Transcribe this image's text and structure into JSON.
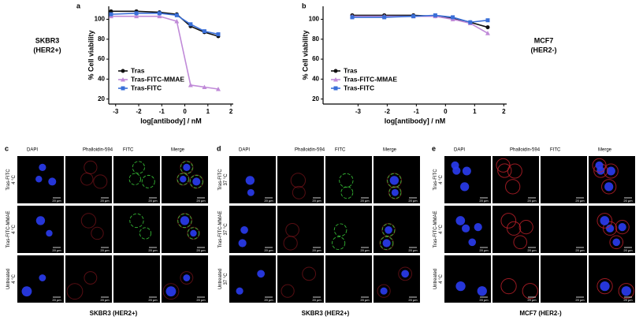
{
  "chart_data": [
    {
      "type": "line",
      "panel": "a",
      "side_label": [
        "SKBR3",
        "(HER2+)"
      ],
      "x_label": "log[antibody] / nM",
      "y_label": "% Cell viability",
      "x": [
        -3.2,
        -2.1,
        -1.1,
        -0.35,
        0.25,
        0.85,
        1.45
      ],
      "xlim": [
        -3.3,
        2.1
      ],
      "xticks": [
        -3,
        -2,
        -1,
        0,
        1,
        2
      ],
      "ylim": [
        15,
        113
      ],
      "yticks": [
        20,
        40,
        60,
        80,
        100
      ],
      "legend": "lower left",
      "series": [
        {
          "name": "Tras",
          "color": "#111111",
          "marker": "circle",
          "values": [
            108,
            108,
            107,
            105,
            93,
            87,
            83
          ]
        },
        {
          "name": "Tras-FITC-MMAE",
          "color": "#c08ad8",
          "marker": "triangle",
          "values": [
            103,
            103,
            103,
            98,
            34,
            32,
            30
          ]
        },
        {
          "name": "Tras-FITC",
          "color": "#3a6fd8",
          "marker": "square",
          "values": [
            105,
            106,
            106,
            104,
            95,
            88,
            85
          ]
        }
      ]
    },
    {
      "type": "line",
      "panel": "b",
      "side_label": [
        "MCF7",
        "(HER2-)"
      ],
      "x_label": "log[antibody] / nM",
      "y_label": "% Cell viability",
      "x": [
        -3.2,
        -2.1,
        -1.1,
        -0.35,
        0.25,
        0.85,
        1.45
      ],
      "xlim": [
        -4.2,
        2.1
      ],
      "xticks": [
        -3,
        -2,
        -1,
        0,
        1,
        2
      ],
      "ylim": [
        15,
        113
      ],
      "yticks": [
        20,
        40,
        60,
        80,
        100
      ],
      "legend": "lower left",
      "series": [
        {
          "name": "Tras",
          "color": "#111111",
          "marker": "circle",
          "values": [
            104,
            104,
            104,
            103,
            101,
            97,
            92
          ]
        },
        {
          "name": "Tras-FITC-MMAE",
          "color": "#c08ad8",
          "marker": "triangle",
          "values": [
            103,
            103,
            103,
            103,
            100,
            96,
            86
          ]
        },
        {
          "name": "Tras-FITC",
          "color": "#3a6fd8",
          "marker": "square",
          "values": [
            102,
            102,
            103,
            104,
            102,
            97,
            99
          ]
        }
      ]
    }
  ],
  "microscopy": [
    {
      "panel": "c",
      "columns": [
        "DAPI",
        "Phalloidin-594",
        "FITC",
        "Merge"
      ],
      "rows": [
        [
          "Tras-FITC",
          "4 °C"
        ],
        [
          "Tras-FITC-MMAE",
          "4 °C"
        ],
        [
          "Untreated",
          "4 °C"
        ]
      ],
      "scale_bar": "20 µm",
      "caption": "SKBR3 (HER2+)"
    },
    {
      "panel": "d",
      "columns": [
        "DAPI",
        "Phalloidin-594",
        "FITC",
        "Merge"
      ],
      "rows": [
        [
          "Tras-FITC",
          "37 °C"
        ],
        [
          "Tras-FITC-MMAE",
          "37 °C"
        ],
        [
          "Untreated",
          "37 °C"
        ]
      ],
      "scale_bar": "20 µm",
      "caption": "SKBR3 (HER2+)"
    },
    {
      "panel": "e",
      "columns": [
        "DAPI",
        "Phalloidin-594",
        "FITC",
        "Merge"
      ],
      "rows": [
        [
          "Tras-FITC",
          "4 °C"
        ],
        [
          "Tras-FITC-MMAE",
          "4 °C"
        ],
        [
          "Untreated",
          "4 °C"
        ]
      ],
      "scale_bar": "20 µm",
      "caption": "MCF7 (HER2-)"
    }
  ]
}
